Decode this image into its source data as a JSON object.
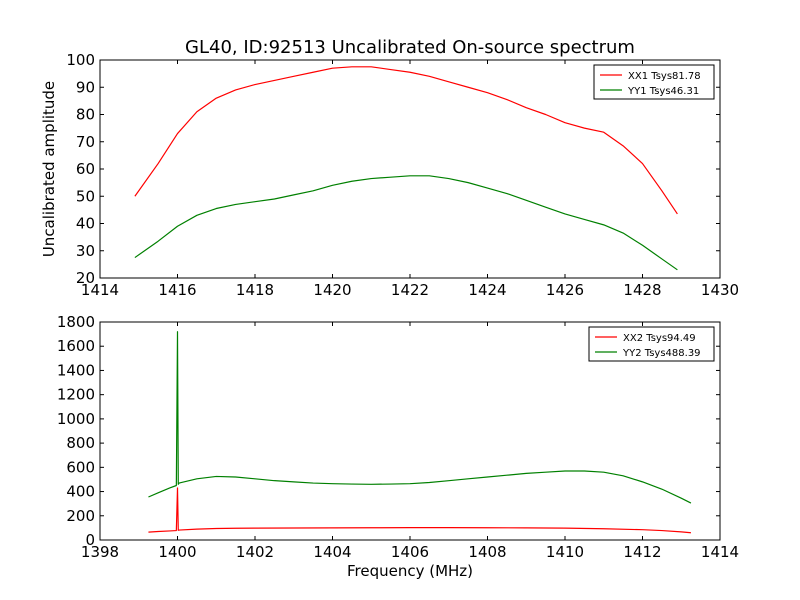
{
  "chart_data": [
    {
      "type": "line",
      "title": "GL40, ID:92513 Uncalibrated On-source spectrum",
      "xlabel": "",
      "ylabel": "Uncalibrated amplitude",
      "xlim": [
        1414,
        1430
      ],
      "ylim": [
        20,
        100
      ],
      "xticks": [
        1414,
        1416,
        1418,
        1420,
        1422,
        1424,
        1426,
        1428,
        1430
      ],
      "yticks": [
        20,
        30,
        40,
        50,
        60,
        70,
        80,
        90,
        100
      ],
      "grid": false,
      "legend_position": "top-right",
      "series": [
        {
          "name": "XX1 Tsys81.78",
          "color": "#ff0000",
          "x": [
            1414.9,
            1415.5,
            1416.0,
            1416.5,
            1417.0,
            1417.5,
            1418.0,
            1418.5,
            1419.0,
            1419.5,
            1420.0,
            1420.5,
            1421.0,
            1421.5,
            1422.0,
            1422.5,
            1423.0,
            1423.5,
            1424.0,
            1424.5,
            1425.0,
            1425.5,
            1426.0,
            1426.5,
            1427.0,
            1427.5,
            1428.0,
            1428.5,
            1428.9
          ],
          "y": [
            50,
            62,
            73,
            81,
            86,
            89,
            91,
            92.5,
            94,
            95.5,
            97,
            97.5,
            97.5,
            96.5,
            95.5,
            94,
            92,
            90,
            88,
            85.5,
            82.5,
            80,
            77,
            75,
            73.5,
            68.5,
            62,
            52,
            43.5
          ]
        },
        {
          "name": "YY1 Tsys46.31",
          "color": "#008000",
          "x": [
            1414.9,
            1415.5,
            1416.0,
            1416.5,
            1417.0,
            1417.5,
            1418.0,
            1418.5,
            1419.0,
            1419.5,
            1420.0,
            1420.5,
            1421.0,
            1421.5,
            1422.0,
            1422.5,
            1423.0,
            1423.5,
            1424.0,
            1424.5,
            1425.0,
            1425.5,
            1426.0,
            1426.5,
            1427.0,
            1427.5,
            1428.0,
            1428.5,
            1428.9
          ],
          "y": [
            27.5,
            33.5,
            39,
            43,
            45.5,
            47,
            48,
            49,
            50.5,
            52,
            54,
            55.5,
            56.5,
            57,
            57.5,
            57.5,
            56.5,
            55,
            53,
            51,
            48.5,
            46,
            43.5,
            41.5,
            39.5,
            36.5,
            32,
            27,
            23
          ]
        }
      ]
    },
    {
      "type": "line",
      "title": "",
      "xlabel": "Frequency (MHz)",
      "ylabel": "",
      "xlim": [
        1398,
        1414
      ],
      "ylim": [
        0,
        1800
      ],
      "xticks": [
        1398,
        1400,
        1402,
        1404,
        1406,
        1408,
        1410,
        1412,
        1414
      ],
      "yticks": [
        0,
        200,
        400,
        600,
        800,
        1000,
        1200,
        1400,
        1600,
        1800
      ],
      "grid": false,
      "legend_position": "top-right",
      "series": [
        {
          "name": "XX2 Tsys94.49",
          "color": "#ff0000",
          "x": [
            1399.25,
            1399.5,
            1399.8,
            1399.97,
            1400.0,
            1400.02,
            1400.04,
            1400.5,
            1401.0,
            1401.5,
            1402.0,
            1403.0,
            1404.0,
            1405.0,
            1406.0,
            1407.0,
            1408.0,
            1409.0,
            1410.0,
            1411.0,
            1412.0,
            1412.5,
            1413.0,
            1413.25
          ],
          "y": [
            65,
            70,
            75,
            78,
            430,
            80,
            82,
            90,
            95,
            97,
            98,
            99,
            100,
            101,
            102,
            102,
            101,
            100,
            98,
            93,
            85,
            78,
            67,
            60
          ],
          "label": "XX2 Tsys94.49"
        },
        {
          "name": "YY2 Tsys488.39",
          "color": "#008000",
          "x": [
            1399.25,
            1399.5,
            1399.8,
            1399.97,
            1400.0,
            1400.02,
            1400.04,
            1400.5,
            1401.0,
            1401.5,
            1402.0,
            1402.5,
            1403.0,
            1403.5,
            1404.0,
            1404.5,
            1405.0,
            1405.5,
            1406.0,
            1406.5,
            1407.0,
            1407.5,
            1408.0,
            1408.5,
            1409.0,
            1409.5,
            1410.0,
            1410.5,
            1411.0,
            1411.5,
            1412.0,
            1412.5,
            1413.0,
            1413.25
          ],
          "y": [
            355,
            390,
            430,
            450,
            1720,
            460,
            470,
            505,
            525,
            520,
            505,
            490,
            480,
            470,
            465,
            462,
            460,
            462,
            465,
            475,
            490,
            505,
            520,
            535,
            550,
            560,
            570,
            570,
            560,
            530,
            480,
            420,
            345,
            305
          ]
        }
      ]
    }
  ]
}
